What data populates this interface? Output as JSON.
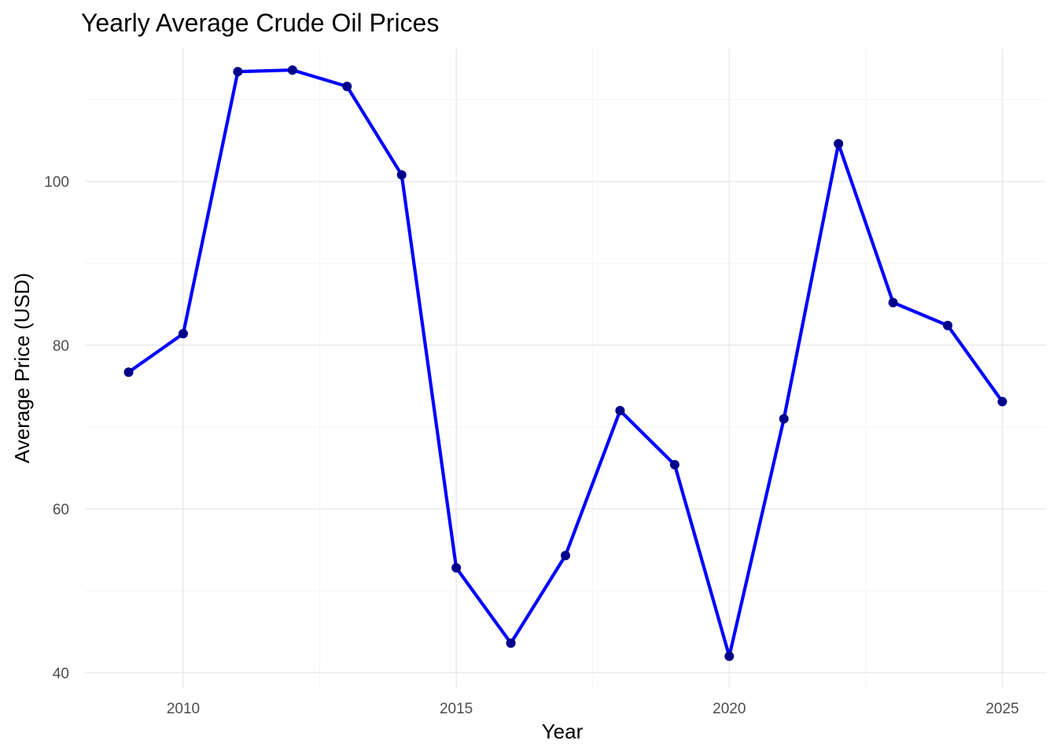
{
  "chart_data": {
    "type": "line",
    "title": "Yearly Average Crude Oil Prices",
    "xlabel": "Year",
    "ylabel": "Average Price (USD)",
    "xlim": [
      2008.2,
      2025.8
    ],
    "ylim": [
      38.2,
      116.2
    ],
    "x_ticks": [
      2010,
      2015,
      2020,
      2025
    ],
    "x_minor_ticks": [
      2012.5,
      2017.5,
      2022.5
    ],
    "y_ticks": [
      40,
      60,
      80,
      100
    ],
    "y_minor_ticks": [
      50,
      70,
      90,
      110
    ],
    "grid": true,
    "legend": "none",
    "series": [
      {
        "line_color": "#0000ff",
        "point_color": "#00008b",
        "x": [
          2009,
          2010,
          2011,
          2012,
          2013,
          2014,
          2015,
          2016,
          2017,
          2018,
          2019,
          2020,
          2021,
          2022,
          2023,
          2024,
          2025
        ],
        "y": [
          76.7,
          81.4,
          113.4,
          113.6,
          111.6,
          100.8,
          52.8,
          43.6,
          54.3,
          72.0,
          65.4,
          42.0,
          71.0,
          104.6,
          85.2,
          82.4,
          73.1
        ]
      }
    ]
  }
}
